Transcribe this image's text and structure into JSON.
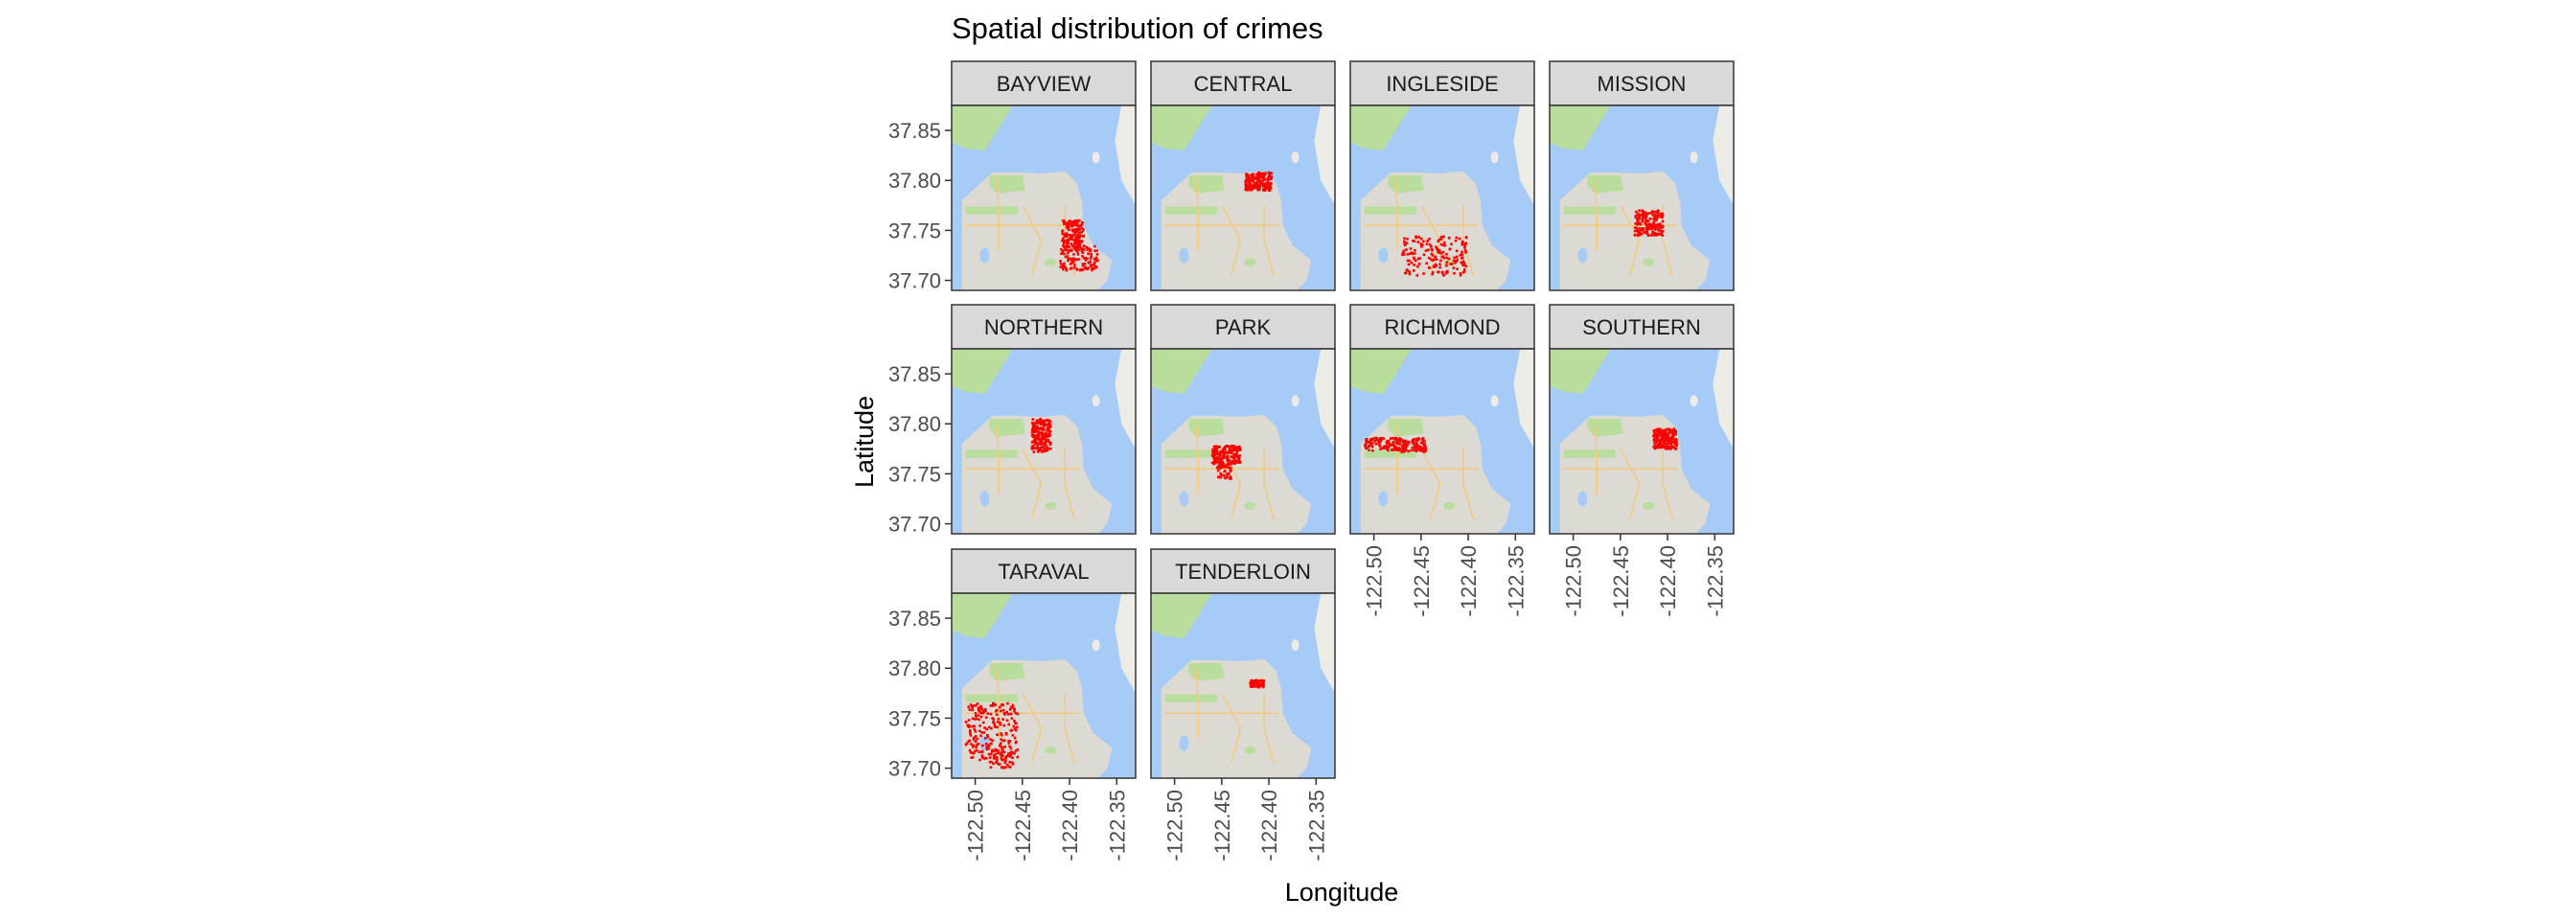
{
  "chart_data": {
    "type": "scatter",
    "title": "Spatial distribution of crimes",
    "xlabel": "Longitude",
    "ylabel": "Latitude",
    "xlim": [
      -122.525,
      -122.33
    ],
    "ylim": [
      37.69,
      37.875
    ],
    "x_ticks": [
      -122.5,
      -122.45,
      -122.4,
      -122.35
    ],
    "x_tick_labels": [
      "-122.50",
      "-122.45",
      "-122.40",
      "-122.35"
    ],
    "y_ticks": [
      37.7,
      37.75,
      37.8,
      37.85
    ],
    "y_tick_labels": [
      "37.70",
      "37.75",
      "37.80",
      "37.85"
    ],
    "facet_columns": 4,
    "grid": false,
    "point_color": "#ff0000",
    "basemap": {
      "water": "#a6cbf7",
      "land": "#ecebe6",
      "park": "#b9dd9c",
      "urban": "#dcdad3",
      "road": "#f6c87a"
    },
    "strip_fill": "#d9d9d9",
    "panels": [
      {
        "name": "BAYVIEW",
        "regions": [
          {
            "lon": [
              -122.408,
              -122.385
            ],
            "lat": [
              37.73,
              37.76
            ],
            "n": 160
          },
          {
            "lon": [
              -122.41,
              -122.37
            ],
            "lat": [
              37.71,
              37.735
            ],
            "n": 110
          }
        ]
      },
      {
        "name": "CENTRAL",
        "regions": [
          {
            "lon": [
              -122.425,
              -122.397
            ],
            "lat": [
              37.79,
              37.808
            ],
            "n": 180
          }
        ]
      },
      {
        "name": "INGLESIDE",
        "regions": [
          {
            "lon": [
              -122.47,
              -122.4
            ],
            "lat": [
              37.705,
              37.745
            ],
            "n": 170
          }
        ]
      },
      {
        "name": "MISSION",
        "regions": [
          {
            "lon": [
              -122.435,
              -122.405
            ],
            "lat": [
              37.745,
              37.77
            ],
            "n": 180
          }
        ]
      },
      {
        "name": "NORTHERN",
        "regions": [
          {
            "lon": [
              -122.44,
              -122.42
            ],
            "lat": [
              37.772,
              37.805
            ],
            "n": 190
          }
        ]
      },
      {
        "name": "PARK",
        "regions": [
          {
            "lon": [
              -122.46,
              -122.43
            ],
            "lat": [
              37.76,
              37.778
            ],
            "n": 160
          },
          {
            "lon": [
              -122.455,
              -122.44
            ],
            "lat": [
              37.745,
              37.76
            ],
            "n": 40
          }
        ]
      },
      {
        "name": "RICHMOND",
        "regions": [
          {
            "lon": [
              -122.51,
              -122.445
            ],
            "lat": [
              37.772,
              37.786
            ],
            "n": 200
          }
        ]
      },
      {
        "name": "SOUTHERN",
        "regions": [
          {
            "lon": [
              -122.415,
              -122.39
            ],
            "lat": [
              37.775,
              37.795
            ],
            "n": 170
          }
        ]
      },
      {
        "name": "TARAVAL",
        "regions": [
          {
            "lon": [
              -122.51,
              -122.455
            ],
            "lat": [
              37.708,
              37.765
            ],
            "n": 210
          },
          {
            "lon": [
              -122.485,
              -122.46
            ],
            "lat": [
              37.7,
              37.72
            ],
            "n": 50
          }
        ]
      },
      {
        "name": "TENDERLOIN",
        "regions": [
          {
            "lon": [
              -122.42,
              -122.405
            ],
            "lat": [
              37.781,
              37.788
            ],
            "n": 70
          }
        ]
      }
    ]
  }
}
